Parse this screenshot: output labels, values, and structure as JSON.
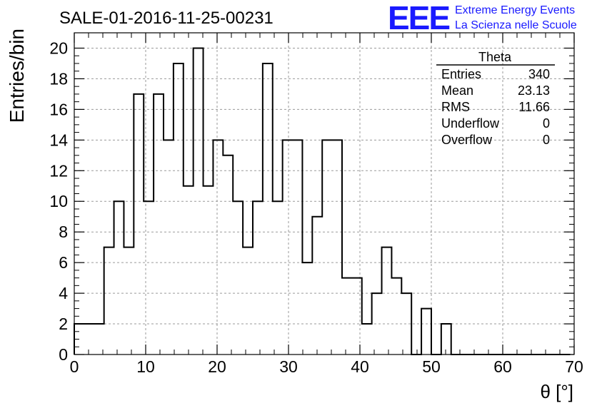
{
  "header": {
    "title": "SALE-01-2016-11-25-00231"
  },
  "logo": {
    "mark": "EEE",
    "line1": "Extreme Energy Events",
    "line2": "La Scienza nelle Scuole",
    "color": "#1a1aff"
  },
  "stats_box": {
    "title": "Theta",
    "rows": [
      {
        "label": "Entries",
        "value": "340"
      },
      {
        "label": "Mean",
        "value": "23.13"
      },
      {
        "label": "RMS",
        "value": "11.66"
      },
      {
        "label": "Underflow",
        "value": "0"
      },
      {
        "label": "Overflow",
        "value": "0"
      }
    ]
  },
  "chart_data": {
    "type": "histogram",
    "title": "SALE-01-2016-11-25-00231",
    "xlabel": "θ [°]",
    "ylabel": "Entries/bin",
    "xlim": [
      0,
      70
    ],
    "ylim": [
      0,
      21
    ],
    "grid": true,
    "bin_width": 1.3888,
    "bin_start": 0,
    "values": [
      2,
      2,
      2,
      7,
      10,
      7,
      17,
      10,
      17,
      14,
      19,
      11,
      20,
      11,
      14,
      13,
      10,
      7,
      10,
      19,
      10,
      14,
      14,
      6,
      9,
      14,
      14,
      5,
      5,
      2,
      4,
      7,
      5,
      4,
      0,
      3,
      0,
      2,
      0,
      0,
      0,
      0,
      0,
      0,
      0,
      0,
      0,
      0,
      0,
      0
    ],
    "x_ticks": [
      0,
      10,
      20,
      30,
      40,
      50,
      60,
      70
    ],
    "y_ticks": [
      0,
      2,
      4,
      6,
      8,
      10,
      12,
      14,
      16,
      18,
      20
    ]
  }
}
